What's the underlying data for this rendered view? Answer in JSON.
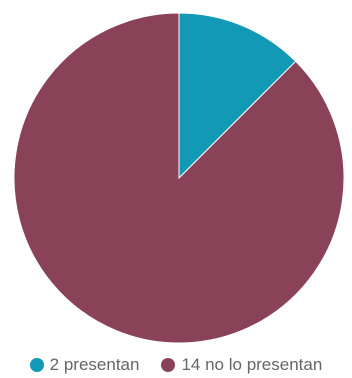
{
  "chart_data": {
    "type": "pie",
    "categories": [
      "2 presentan",
      "14 no lo presentan"
    ],
    "values": [
      2,
      14
    ],
    "colors": [
      "#1199b6",
      "#8a4259"
    ],
    "legend_position": "bottom",
    "start_angle": "top",
    "direction": "clockwise"
  },
  "legend": {
    "items": [
      {
        "label": "2 presentan",
        "color": "#1199b6"
      },
      {
        "label": "14 no lo presentan",
        "color": "#8a4259"
      }
    ]
  }
}
